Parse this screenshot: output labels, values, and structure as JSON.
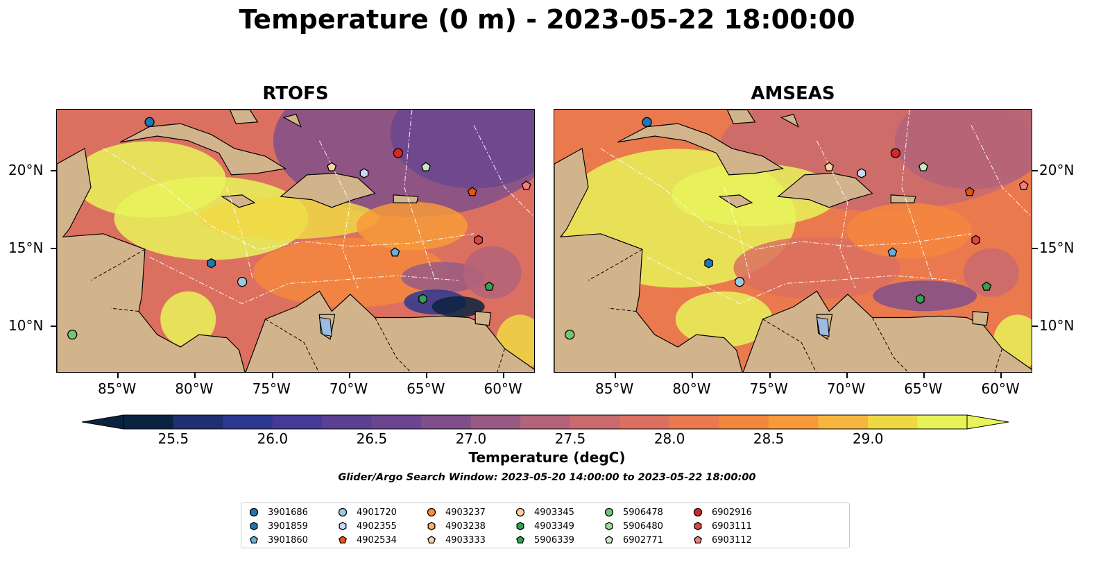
{
  "title": "Temperature (0 m) - 2023-05-22 18:00:00",
  "panels": [
    {
      "title": "RTOFS",
      "model": "rtofs"
    },
    {
      "title": "AMSEAS",
      "model": "amseas"
    }
  ],
  "map": {
    "lon_range": [
      -89,
      -58
    ],
    "lat_range": [
      7,
      24
    ],
    "lon_ticks": [
      "85°W",
      "80°W",
      "75°W",
      "70°W",
      "65°W",
      "60°W"
    ],
    "lon_tick_values": [
      -85,
      -80,
      -75,
      -70,
      -65,
      -60
    ],
    "lat_ticks": [
      "20°N",
      "15°N",
      "10°N"
    ],
    "lat_tick_values": [
      20,
      15,
      10
    ],
    "land_color": "#d2b48c",
    "water_color": "#9bbbe0"
  },
  "colorbar": {
    "title": "Temperature (degC)",
    "min": 25.25,
    "max": 29.5,
    "ticks": [
      "25.5",
      "26.0",
      "26.5",
      "27.0",
      "27.5",
      "28.0",
      "28.5",
      "29.0"
    ],
    "tick_values": [
      25.5,
      26.0,
      26.5,
      27.0,
      27.5,
      28.0,
      28.5,
      29.0
    ],
    "colors": [
      "#0c2340",
      "#1f2f72",
      "#2e3890",
      "#453a96",
      "#5a3f92",
      "#6b4690",
      "#804f8a",
      "#985a83",
      "#b3637a",
      "#c96a6e",
      "#dc7060",
      "#ea7a4e",
      "#f4873e",
      "#f79a3a",
      "#f5b53e",
      "#f0d845",
      "#e8f35a"
    ],
    "over_color": "#e8f35a",
    "under_color": "#0c2340"
  },
  "search_window": "Glider/Argo Search Window: 2023-05-20 14:00:00 to 2023-05-22 18:00:00",
  "legend": [
    {
      "id": "3901686",
      "marker": "circle",
      "color": "#1f77b4"
    },
    {
      "id": "3901859",
      "marker": "hexagon",
      "color": "#1f77b4"
    },
    {
      "id": "3901860",
      "marker": "pentagon",
      "color": "#6aaed6"
    },
    {
      "id": "4901720",
      "marker": "circle",
      "color": "#9ecae1"
    },
    {
      "id": "4902355",
      "marker": "hexagon",
      "color": "#c6dbef"
    },
    {
      "id": "4902534",
      "marker": "pentagon",
      "color": "#e6550d"
    },
    {
      "id": "4903237",
      "marker": "circle",
      "color": "#fd8d3c"
    },
    {
      "id": "4903238",
      "marker": "hexagon",
      "color": "#fdae6b"
    },
    {
      "id": "4903333",
      "marker": "pentagon",
      "color": "#fdd0a2"
    },
    {
      "id": "4903345",
      "marker": "circle",
      "color": "#fdd0a2"
    },
    {
      "id": "4903349",
      "marker": "hexagon",
      "color": "#31a354"
    },
    {
      "id": "5906339",
      "marker": "pentagon",
      "color": "#31a354"
    },
    {
      "id": "5906478",
      "marker": "circle",
      "color": "#74c476"
    },
    {
      "id": "5906480",
      "marker": "hexagon",
      "color": "#a1d99b"
    },
    {
      "id": "6902771",
      "marker": "pentagon",
      "color": "#c7e9c0"
    },
    {
      "id": "6902916",
      "marker": "circle",
      "color": "#d62728"
    },
    {
      "id": "6903111",
      "marker": "hexagon",
      "color": "#e04446"
    },
    {
      "id": "6903112",
      "marker": "pentagon",
      "color": "#f08080"
    }
  ],
  "floats": [
    {
      "id": "3901686",
      "lon": -83,
      "lat": 23.2
    },
    {
      "id": "5906478",
      "lon": -88,
      "lat": 9.5
    },
    {
      "id": "3901859",
      "lon": -79,
      "lat": 14.1
    },
    {
      "id": "4901720",
      "lon": -77,
      "lat": 12.9
    },
    {
      "id": "4903333",
      "lon": -71.2,
      "lat": 20.3
    },
    {
      "id": "4902355",
      "lon": -69.1,
      "lat": 19.9
    },
    {
      "id": "6902916",
      "lon": -66.9,
      "lat": 21.2
    },
    {
      "id": "6902771",
      "lon": -65.1,
      "lat": 20.3
    },
    {
      "id": "4902534",
      "lon": -62.1,
      "lat": 18.7
    },
    {
      "id": "6903112",
      "lon": -58.6,
      "lat": 19.1
    },
    {
      "id": "3901860",
      "lon": -67.1,
      "lat": 14.8
    },
    {
      "id": "6903111",
      "lon": -61.7,
      "lat": 15.6
    },
    {
      "id": "5906339",
      "lon": -61,
      "lat": 12.6
    },
    {
      "id": "4903349",
      "lon": -65.3,
      "lat": 11.8
    }
  ]
}
